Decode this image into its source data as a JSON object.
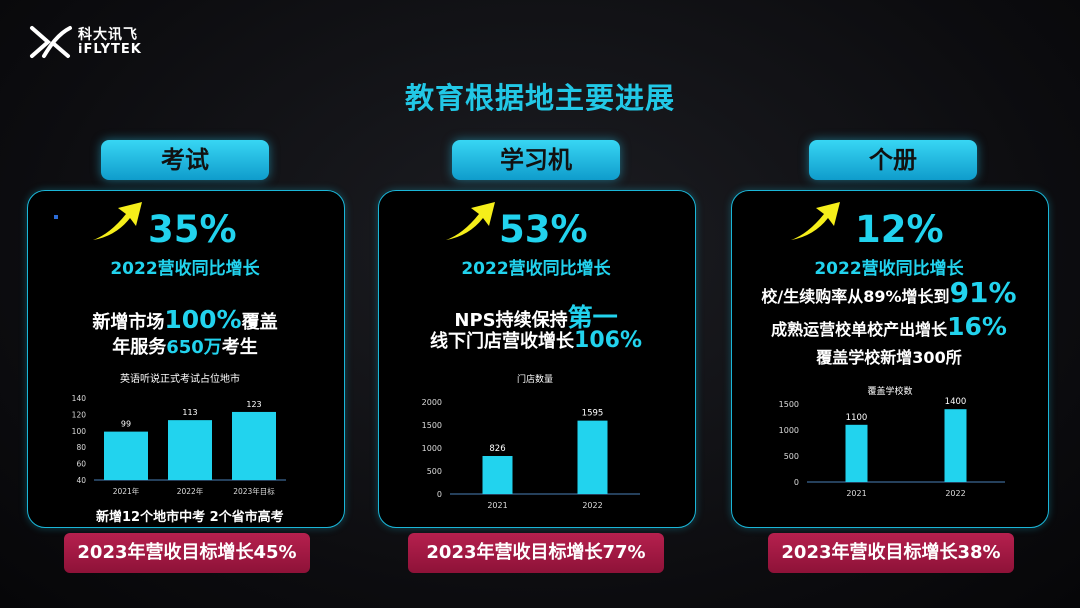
{
  "logo": {
    "cn": "科大讯飞",
    "en": "iFLYTEK"
  },
  "page_title": "教育根据地主要进展",
  "colors": {
    "accent": "#22d3ee",
    "bar": "#22d3ee",
    "target_bg": "#a8194a",
    "arrow": "#f5ee1a"
  },
  "panels": [
    {
      "tab": "考试",
      "pct": "35%",
      "sub": "2022营收同比增长",
      "line1": {
        "a": "新增市场",
        "b": "100%",
        "c": "覆盖"
      },
      "line2": {
        "a": "年服务",
        "b": "650万",
        "c": "考生"
      },
      "bottom": "新增12个地市中考 2个省市高考",
      "target": "2023年营收目标增长45%"
    },
    {
      "tab": "学习机",
      "pct": "53%",
      "sub": "2022营收同比增长",
      "line1": {
        "a": "NPS持续保持",
        "b": "第一",
        "c": ""
      },
      "line2": {
        "a": "线下门店营收增长",
        "b": "106%",
        "c": ""
      },
      "bottom": "",
      "target": "2023年营收目标增长77%"
    },
    {
      "tab": "个册",
      "pct": "12%",
      "sub": "2022营收同比增长",
      "line1": {
        "a": "校/生续购率从89%增长到",
        "b": "91%",
        "c": ""
      },
      "line2": {
        "a": "成熟运营校单校产出增长",
        "b": "16%",
        "c": ""
      },
      "line3": {
        "a": "覆盖学校新增300所"
      },
      "bottom": "",
      "target": "2023年营收目标增长38%"
    }
  ],
  "chart_data": [
    {
      "type": "bar",
      "title": "英语听说正式考试占位地市",
      "categories": [
        "2021年",
        "2022年",
        "2023年目标"
      ],
      "values": [
        99,
        113,
        123
      ],
      "ylim": [
        40,
        140
      ],
      "yticks": [
        40,
        60,
        80,
        100,
        120,
        140
      ],
      "data_labels": [
        "99",
        "113",
        "123"
      ],
      "grid": false
    },
    {
      "type": "bar",
      "title": "门店数量",
      "categories": [
        "2021",
        "2022"
      ],
      "values": [
        826,
        1595
      ],
      "ylim": [
        0,
        2000
      ],
      "yticks": [
        0,
        500,
        1000,
        1500,
        2000
      ],
      "data_labels": [
        "826",
        "1595"
      ],
      "grid": false
    },
    {
      "type": "bar",
      "title": "覆盖学校数",
      "categories": [
        "2021",
        "2022"
      ],
      "values": [
        1100,
        1400
      ],
      "ylim": [
        0,
        1500
      ],
      "yticks": [
        0,
        500,
        1000,
        1500
      ],
      "data_labels": [
        "1100",
        "1400"
      ],
      "grid": false
    }
  ]
}
